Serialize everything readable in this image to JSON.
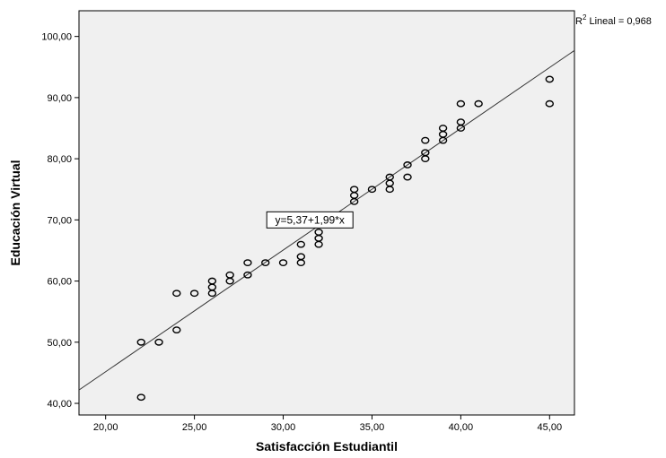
{
  "chart_data": {
    "type": "scatter",
    "title": "",
    "xlabel": "Satisfacción Estudiantil",
    "ylabel": "Educación Virtual",
    "xlim": [
      18.5,
      46.4
    ],
    "ylim": [
      38.1,
      104.2
    ],
    "x_ticks": [
      20,
      25,
      30,
      35,
      40,
      45
    ],
    "x_tick_labels": [
      "20,00",
      "25,00",
      "30,00",
      "35,00",
      "40,00",
      "45,00"
    ],
    "y_ticks": [
      40,
      50,
      60,
      70,
      80,
      90,
      100
    ],
    "y_tick_labels": [
      "40,00",
      "50,00",
      "60,00",
      "70,00",
      "80,00",
      "90,00",
      "100,00"
    ],
    "grid": false,
    "plot_background": "#f0f0f0",
    "marker_color": "#000000",
    "r2_label": {
      "prefix": "R",
      "superscript": "2",
      "text": " Lineal = 0,968"
    },
    "fit_line": {
      "intercept": 5.37,
      "slope": 1.99,
      "equation": "y=5,37+1,99*x",
      "label_at": [
        31.5,
        70
      ]
    },
    "points": [
      [
        22,
        41
      ],
      [
        22,
        50
      ],
      [
        23,
        50
      ],
      [
        24,
        58
      ],
      [
        24,
        52
      ],
      [
        25,
        58
      ],
      [
        26,
        60
      ],
      [
        26,
        59
      ],
      [
        26,
        58
      ],
      [
        27,
        61
      ],
      [
        27,
        60
      ],
      [
        28,
        63
      ],
      [
        28,
        61
      ],
      [
        29,
        63
      ],
      [
        30,
        63
      ],
      [
        31,
        66
      ],
      [
        31,
        64
      ],
      [
        31,
        63
      ],
      [
        32,
        68
      ],
      [
        32,
        67
      ],
      [
        32,
        66
      ],
      [
        34,
        75
      ],
      [
        34,
        74
      ],
      [
        34,
        73
      ],
      [
        35,
        75
      ],
      [
        36,
        77
      ],
      [
        36,
        76
      ],
      [
        36,
        75
      ],
      [
        37,
        79
      ],
      [
        37,
        77
      ],
      [
        38,
        83
      ],
      [
        38,
        81
      ],
      [
        38,
        80
      ],
      [
        39,
        85
      ],
      [
        39,
        84
      ],
      [
        39,
        83
      ],
      [
        40,
        89
      ],
      [
        40,
        86
      ],
      [
        40,
        85
      ],
      [
        41,
        89
      ],
      [
        45,
        93
      ],
      [
        45,
        89
      ]
    ]
  }
}
